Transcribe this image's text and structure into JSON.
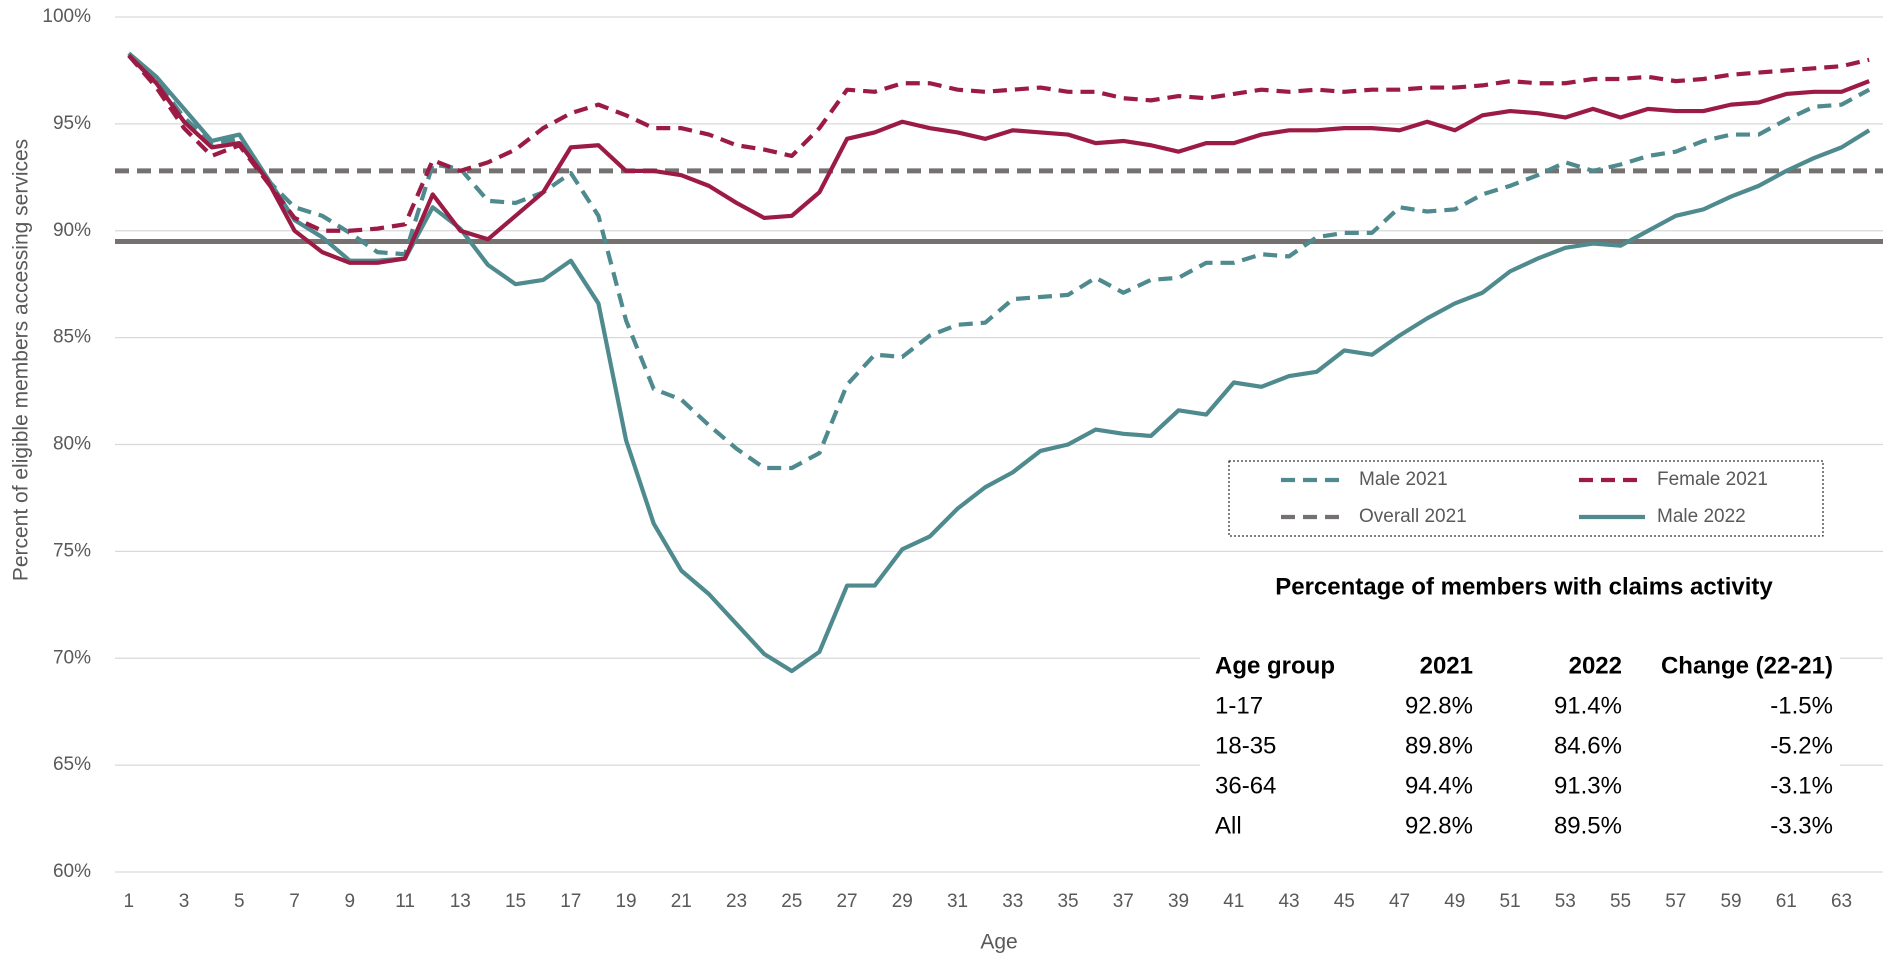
{
  "chart_data": {
    "type": "line",
    "y_label": "Percent of eligible members accessing services",
    "x_label": "Age",
    "x": [
      1,
      2,
      3,
      4,
      5,
      6,
      7,
      8,
      9,
      10,
      11,
      12,
      13,
      14,
      15,
      16,
      17,
      18,
      19,
      20,
      21,
      22,
      23,
      24,
      25,
      26,
      27,
      28,
      29,
      30,
      31,
      32,
      33,
      34,
      35,
      36,
      37,
      38,
      39,
      40,
      41,
      42,
      43,
      44,
      45,
      46,
      47,
      48,
      49,
      50,
      51,
      52,
      53,
      54,
      55,
      56,
      57,
      58,
      59,
      60,
      61,
      62,
      63,
      64
    ],
    "xlim": [
      0.5,
      64.5
    ],
    "xticks": [
      1,
      3,
      5,
      7,
      9,
      11,
      13,
      15,
      17,
      19,
      21,
      23,
      25,
      27,
      29,
      31,
      33,
      35,
      37,
      39,
      41,
      43,
      45,
      47,
      49,
      51,
      53,
      55,
      57,
      59,
      61,
      63
    ],
    "ylim": [
      60,
      100
    ],
    "yticks": [
      {
        "value": 60,
        "label": "60%"
      },
      {
        "value": 65,
        "label": "65%"
      },
      {
        "value": 70,
        "label": "70%"
      },
      {
        "value": 75,
        "label": "75%"
      },
      {
        "value": 80,
        "label": "80%"
      },
      {
        "value": 85,
        "label": "85%"
      },
      {
        "value": 90,
        "label": "90%"
      },
      {
        "value": 95,
        "label": "95%"
      },
      {
        "value": 100,
        "label": "100%"
      }
    ],
    "grid": true,
    "series": [
      {
        "name": "Male 2021",
        "color": "#4e8a8e",
        "dash": true,
        "values": [
          98.3,
          97.0,
          95.3,
          94.1,
          94.3,
          92.4,
          91.1,
          90.7,
          89.9,
          89.0,
          88.9,
          93.1,
          92.9,
          91.4,
          91.3,
          91.8,
          92.7,
          90.7,
          85.8,
          82.6,
          82.1,
          80.9,
          79.8,
          78.9,
          78.9,
          79.6,
          82.8,
          84.2,
          84.1,
          85.1,
          85.6,
          85.7,
          86.8,
          86.9,
          87.0,
          87.8,
          87.1,
          87.7,
          87.8,
          88.5,
          88.5,
          88.9,
          88.8,
          89.7,
          89.9,
          89.9,
          91.1,
          90.9,
          91.0,
          91.7,
          92.1,
          92.6,
          93.2,
          92.8,
          93.1,
          93.5,
          93.7,
          94.2,
          94.5,
          94.5,
          95.2,
          95.8,
          95.9,
          96.6
        ]
      },
      {
        "name": "Female 2021",
        "color": "#9b1b44",
        "dash": true,
        "values": [
          98.2,
          96.7,
          94.8,
          93.5,
          94.0,
          92.3,
          90.6,
          90.0,
          90.0,
          90.1,
          90.3,
          93.3,
          92.8,
          93.2,
          93.8,
          94.8,
          95.5,
          95.9,
          95.4,
          94.8,
          94.8,
          94.5,
          94.0,
          93.8,
          93.5,
          94.8,
          96.6,
          96.5,
          96.9,
          96.9,
          96.6,
          96.5,
          96.6,
          96.7,
          96.5,
          96.5,
          96.2,
          96.1,
          96.3,
          96.2,
          96.4,
          96.6,
          96.5,
          96.6,
          96.5,
          96.6,
          96.6,
          96.7,
          96.7,
          96.8,
          97.0,
          96.9,
          96.9,
          97.1,
          97.1,
          97.2,
          97.0,
          97.1,
          97.3,
          97.4,
          97.5,
          97.6,
          97.7,
          98.0
        ]
      },
      {
        "name": "Overall 2021",
        "color": "#767171",
        "dash": true,
        "value": 92.8
      },
      {
        "name": "Male 2022",
        "color": "#4e8a8e",
        "dash": false,
        "values": [
          98.3,
          97.2,
          95.7,
          94.2,
          94.5,
          92.5,
          90.5,
          89.7,
          88.6,
          88.6,
          88.7,
          91.1,
          90.1,
          88.4,
          87.5,
          87.7,
          88.6,
          86.6,
          80.2,
          76.3,
          74.1,
          73.0,
          71.6,
          70.2,
          69.4,
          70.3,
          73.4,
          73.4,
          75.1,
          75.7,
          77.0,
          78.0,
          78.7,
          79.7,
          80.0,
          80.7,
          80.5,
          80.4,
          81.6,
          81.4,
          82.9,
          82.7,
          83.2,
          83.4,
          84.4,
          84.2,
          85.1,
          85.9,
          86.6,
          87.1,
          88.1,
          88.7,
          89.2,
          89.4,
          89.3,
          90.0,
          90.7,
          91.0,
          91.6,
          92.1,
          92.8,
          93.4,
          93.9,
          94.7
        ]
      },
      {
        "color": "#9b1b44",
        "dash": false,
        "values": [
          98.2,
          96.9,
          95.1,
          93.9,
          94.1,
          92.4,
          90.0,
          89.0,
          88.5,
          88.5,
          88.7,
          91.7,
          90.0,
          89.6,
          90.7,
          91.8,
          93.9,
          94.0,
          92.8,
          92.8,
          92.6,
          92.1,
          91.3,
          90.6,
          90.7,
          91.8,
          94.3,
          94.6,
          95.1,
          94.8,
          94.6,
          94.3,
          94.7,
          94.6,
          94.5,
          94.1,
          94.2,
          94.0,
          93.7,
          94.1,
          94.1,
          94.5,
          94.7,
          94.7,
          94.8,
          94.8,
          94.7,
          95.1,
          94.7,
          95.4,
          95.6,
          95.5,
          95.3,
          95.7,
          95.3,
          95.7,
          95.6,
          95.6,
          95.9,
          96.0,
          96.4,
          96.5,
          96.5,
          97.0
        ]
      },
      {
        "color": "#767171",
        "dash": false,
        "value": 89.5
      }
    ],
    "table": {
      "title": "Percentage of members with claims activity",
      "columns": [
        "Age group",
        "2021",
        "2022",
        "Change (22-21)"
      ],
      "rows": [
        [
          "1-17",
          "92.8%",
          "91.4%",
          "-1.5%"
        ],
        [
          "18-35",
          "89.8%",
          "84.6%",
          "-5.2%"
        ],
        [
          "36-64",
          "94.4%",
          "91.3%",
          "-3.1%"
        ],
        [
          "All",
          "92.8%",
          "89.5%",
          "-3.3%"
        ]
      ]
    }
  }
}
